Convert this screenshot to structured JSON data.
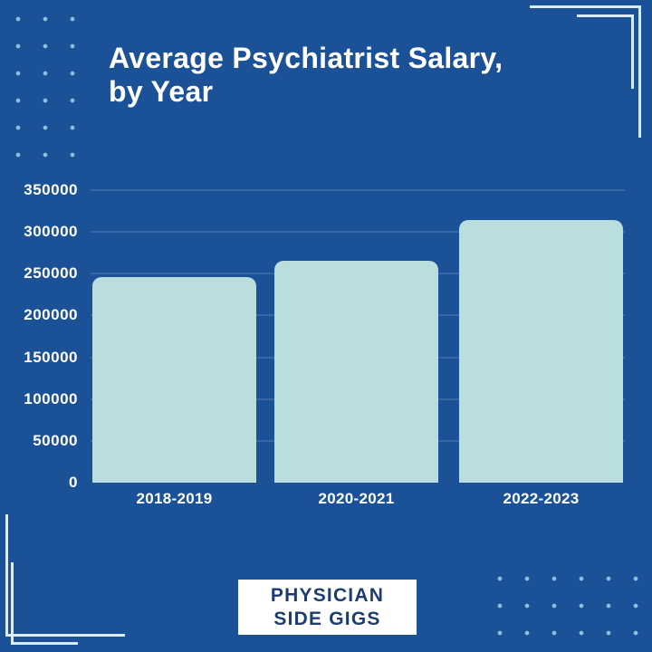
{
  "header": {
    "title_line1": "Average Psychiatrist Salary,",
    "title_line2": "by Year"
  },
  "chart_data": {
    "type": "bar",
    "title": "Average Psychiatrist Salary, by Year",
    "categories": [
      "2018-2019",
      "2020-2021",
      "2022-2023"
    ],
    "values": [
      246000,
      266000,
      314000
    ],
    "xlabel": "",
    "ylabel": "",
    "ylim": [
      0,
      350000
    ],
    "yticks": [
      0,
      50000,
      100000,
      150000,
      200000,
      250000,
      300000,
      350000
    ],
    "grid": true,
    "legend": false,
    "bar_color": "#b9dedd"
  },
  "branding": {
    "line1": "PHYSICIAN",
    "line2": "SIDE GIGS"
  },
  "colors": {
    "background": "#1a5197",
    "bar": "#b9dedd",
    "gridline": "rgba(255,255,255,0.13)",
    "axis_text": "#ffffff",
    "accent_light": "#d9ecf7",
    "dot": "#8ebede",
    "logo_background": "#ffffff",
    "logo_text": "#1d3d70"
  }
}
